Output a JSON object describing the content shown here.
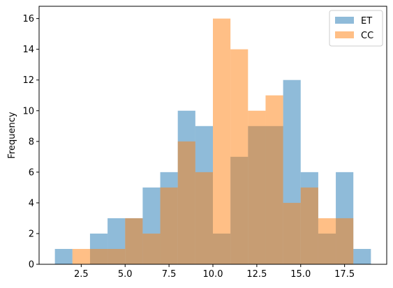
{
  "chart_data": {
    "type": "bar",
    "chart_subtype": "overlapping-histogram",
    "title": "",
    "xlabel": "",
    "ylabel": "Frequency",
    "xlim": [
      0.1,
      19.9
    ],
    "ylim": [
      0,
      16.8
    ],
    "bin_width": 1,
    "x_ticks": [
      2.5,
      5.0,
      7.5,
      10.0,
      12.5,
      15.0,
      17.5
    ],
    "x_tick_labels": [
      "2.5",
      "5.0",
      "7.5",
      "10.0",
      "12.5",
      "15.0",
      "17.5"
    ],
    "y_ticks": [
      0,
      2,
      4,
      6,
      8,
      10,
      12,
      14,
      16
    ],
    "y_tick_labels": [
      "0",
      "2",
      "4",
      "6",
      "8",
      "10",
      "12",
      "14",
      "16"
    ],
    "grid": false,
    "legend_position": "top-right",
    "blend": "alpha 0.5",
    "series": [
      {
        "name": "ET",
        "color": "#1f77b4",
        "alpha": 0.5,
        "bin_edges": [
          1,
          2,
          3,
          4,
          5,
          6,
          7,
          8,
          9,
          10,
          11,
          12,
          13,
          14,
          15,
          16,
          17,
          18,
          19
        ],
        "values": [
          1,
          0,
          2,
          3,
          3,
          5,
          6,
          10,
          9,
          2,
          7,
          9,
          9,
          12,
          6,
          2,
          6,
          1
        ]
      },
      {
        "name": "CC",
        "color": "#ff7f0e",
        "alpha": 0.5,
        "bin_edges": [
          2,
          3,
          4,
          5,
          6,
          7,
          8,
          9,
          10,
          11,
          12,
          13,
          14,
          15,
          16,
          17,
          18
        ],
        "values": [
          1,
          1,
          1,
          3,
          2,
          5,
          8,
          6,
          16,
          14,
          10,
          11,
          4,
          5,
          3,
          3
        ]
      }
    ]
  }
}
